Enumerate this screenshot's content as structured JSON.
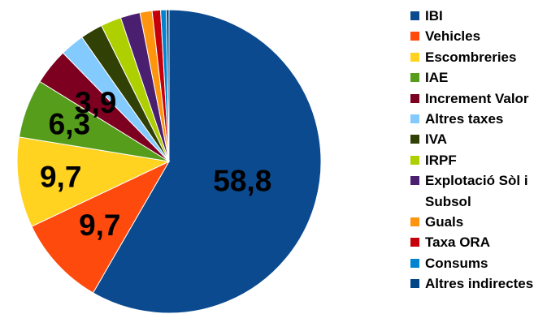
{
  "chart_data": {
    "type": "pie",
    "title": "",
    "slices": [
      {
        "name": "IBI",
        "value": 58.8,
        "color": "#0b4a8f",
        "label": "58,8"
      },
      {
        "name": "Vehicles",
        "value": 9.7,
        "color": "#ff4a0e",
        "label": "9,7"
      },
      {
        "name": "Escombreries",
        "value": 9.7,
        "color": "#ffd320",
        "label": "9,7"
      },
      {
        "name": "IAE",
        "value": 6.3,
        "color": "#579d1c",
        "label": "6,3"
      },
      {
        "name": "Increment Valor",
        "value": 3.9,
        "color": "#7e0021",
        "label": "3,9"
      },
      {
        "name": "Altres taxes",
        "value": 2.6,
        "color": "#83caff",
        "label": ""
      },
      {
        "name": "IVA",
        "value": 2.4,
        "color": "#314004",
        "label": ""
      },
      {
        "name": "IRPF",
        "value": 2.2,
        "color": "#aecf00",
        "label": ""
      },
      {
        "name": "Explotació Sòl i Subsol",
        "value": 2.1,
        "color": "#4b1f6f",
        "label": ""
      },
      {
        "name": "Guals",
        "value": 1.3,
        "color": "#ff950e",
        "label": ""
      },
      {
        "name": "Taxa ORA",
        "value": 0.9,
        "color": "#c5000b",
        "label": ""
      },
      {
        "name": "Consums",
        "value": 0.6,
        "color": "#0084d1",
        "label": ""
      },
      {
        "name": "Altres indirectes",
        "value": 0.3,
        "color": "#004586",
        "label": ""
      }
    ],
    "legend_position": "right"
  }
}
